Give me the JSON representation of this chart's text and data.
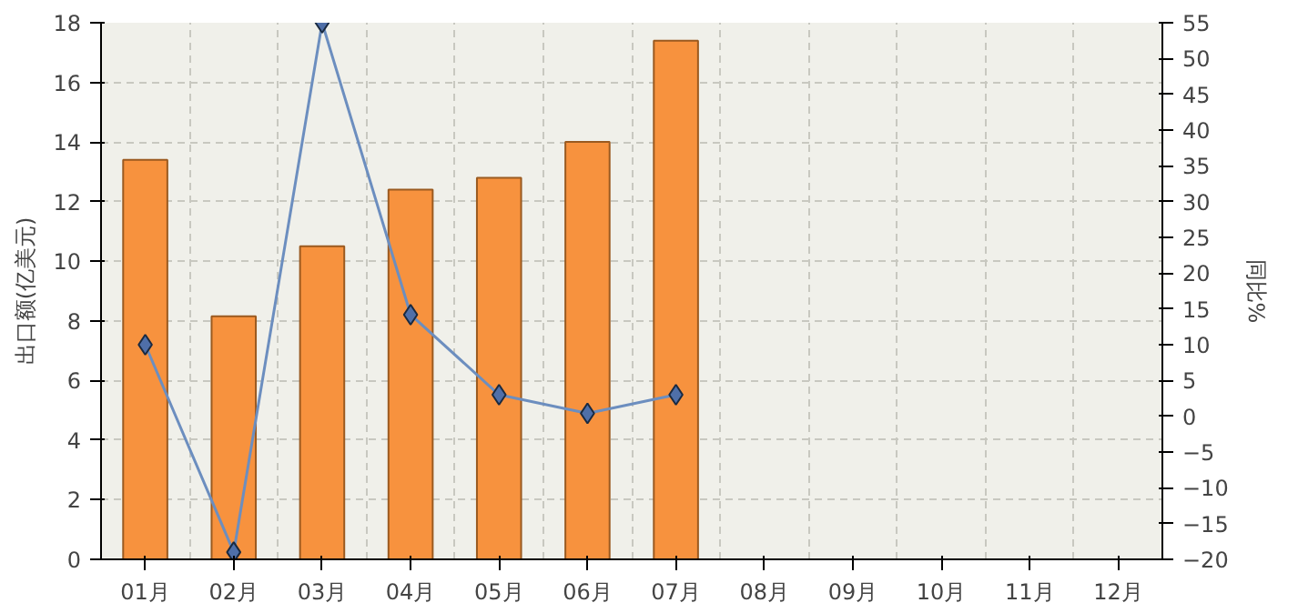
{
  "chart_data": {
    "type": "bar",
    "categories": [
      "01月",
      "02月",
      "03月",
      "04月",
      "05月",
      "06月",
      "07月",
      "08月",
      "09月",
      "10月",
      "11月",
      "12月"
    ],
    "ylabel": "出口额(亿美元)",
    "y2label": "同比%",
    "series": [
      {
        "color": "#f7923e",
        "values": [
          13.4,
          8.15,
          10.5,
          12.4,
          12.8,
          14.0,
          17.4,
          null,
          null,
          null,
          null,
          null
        ]
      },
      {
        "type": "line",
        "axis": "y2",
        "color": "#6c8ebf",
        "marker": "diamond",
        "values": [
          10.0,
          -19,
          55,
          14.2,
          3.0,
          0.4,
          3.0,
          null,
          null,
          null,
          null,
          null
        ]
      }
    ],
    "ylim": [
      0,
      18
    ],
    "yticks": [
      0,
      2,
      4,
      6,
      8,
      10,
      12,
      14,
      16,
      18
    ],
    "y2lim": [
      -20,
      55
    ],
    "y2ticks": [
      -20,
      -15,
      -10,
      -5,
      0,
      5,
      10,
      15,
      20,
      25,
      30,
      35,
      40,
      45,
      50,
      55
    ],
    "grid": true
  }
}
